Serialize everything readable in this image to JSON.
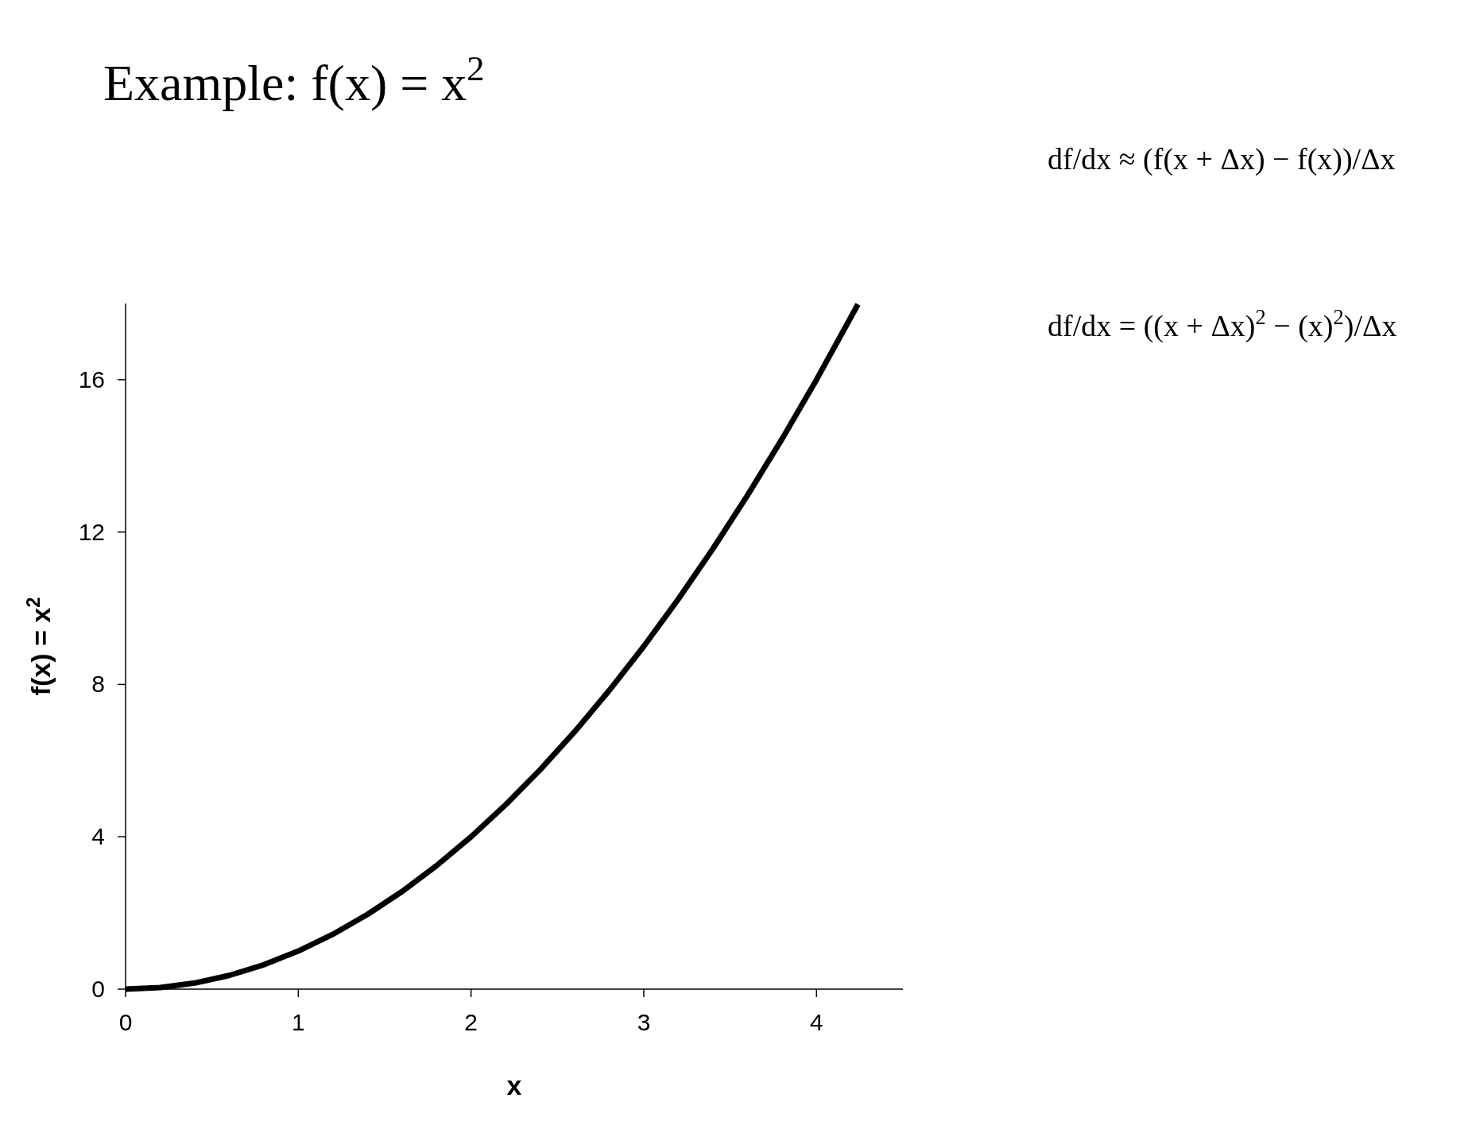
{
  "chart_data": {
    "type": "line",
    "title": "Example:  f(x) = x$^{2}$",
    "xlabel": "x",
    "ylabel": "f(x) = x$^{2}$",
    "annotations": [
      "df/dx ≈ (f(x + Δx) − f(x))/Δx",
      "df/dx = ((x + Δx)$^{2}$ − (x)$^{2}$)/Δx"
    ],
    "x": [
      0,
      0.2,
      0.4,
      0.6,
      0.8,
      1,
      1.2,
      1.4,
      1.6,
      1.8,
      2,
      2.2,
      2.4,
      2.6,
      2.8,
      3,
      3.2,
      3.4,
      3.6,
      3.8,
      4,
      4.24
    ],
    "series": [
      {
        "color": "#000000",
        "values": [
          0,
          0.04,
          0.16,
          0.36,
          0.64,
          1,
          1.44,
          1.96,
          2.56,
          3.24,
          4,
          4.84,
          5.76,
          6.76,
          7.84,
          9,
          10.24,
          11.56,
          12.96,
          14.44,
          16,
          17.98
        ]
      }
    ],
    "xlim": [
      0,
      4.5
    ],
    "ylim": [
      0,
      18
    ],
    "xticks": [
      0,
      1,
      2,
      3,
      4
    ],
    "yticks": [
      0,
      4,
      8,
      12,
      16
    ],
    "grid": false,
    "marker": "none",
    "line_style": "solid"
  }
}
